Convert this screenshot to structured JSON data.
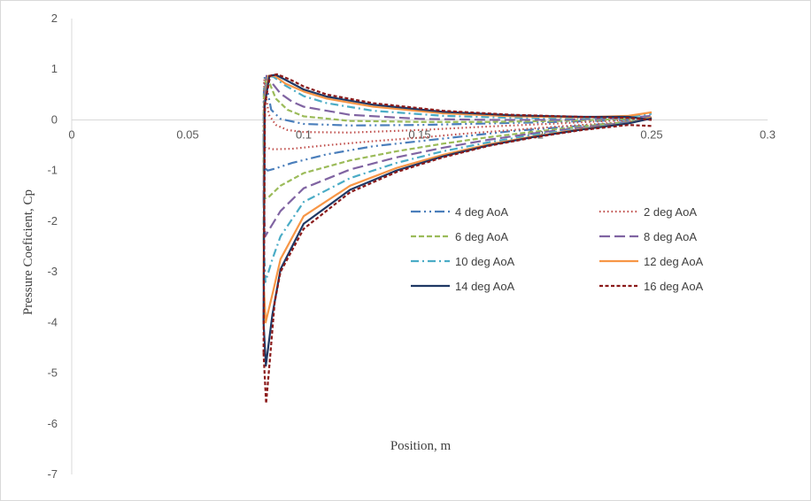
{
  "chart_data": {
    "type": "line",
    "title": "",
    "xlabel": "Position, m",
    "ylabel": "Pressure Coeficient, Cp",
    "xlim": [
      0,
      0.3
    ],
    "ylim": [
      -7,
      2
    ],
    "xticks": [
      0,
      0.05,
      0.1,
      0.15,
      0.2,
      0.25,
      0.3
    ],
    "xtick_labels": [
      "0",
      "0.05",
      "0.1",
      "0.15",
      "0.2",
      "0.25",
      "0.3"
    ],
    "yticks": [
      2,
      1,
      0,
      -1,
      -2,
      -3,
      -4,
      -5,
      -6,
      -7
    ],
    "ytick_labels": [
      "2",
      "1",
      "0",
      "-1",
      "-2",
      "-3",
      "-4",
      "-5",
      "-6",
      "-7"
    ],
    "grid": false,
    "legend_position": "center-right",
    "series": [
      {
        "name": "4 deg AoA",
        "color": "#4a7ebb",
        "dash": "long-dash-dot-dot",
        "upper": [
          [
            0.0827,
            -0.5
          ],
          [
            0.0832,
            -0.95
          ],
          [
            0.0845,
            -1.0
          ],
          [
            0.087,
            -0.97
          ],
          [
            0.095,
            -0.85
          ],
          [
            0.11,
            -0.68
          ],
          [
            0.13,
            -0.52
          ],
          [
            0.15,
            -0.42
          ],
          [
            0.17,
            -0.32
          ],
          [
            0.19,
            -0.22
          ],
          [
            0.21,
            -0.15
          ],
          [
            0.23,
            -0.08
          ],
          [
            0.245,
            -0.02
          ],
          [
            0.25,
            0.05
          ]
        ],
        "lower": [
          [
            0.0827,
            -0.5
          ],
          [
            0.0828,
            0.5
          ],
          [
            0.0832,
            0.85
          ],
          [
            0.0845,
            0.55
          ],
          [
            0.086,
            0.2
          ],
          [
            0.09,
            0.02
          ],
          [
            0.1,
            -0.08
          ],
          [
            0.12,
            -0.11
          ],
          [
            0.15,
            -0.1
          ],
          [
            0.18,
            -0.07
          ],
          [
            0.21,
            -0.04
          ],
          [
            0.24,
            0.0
          ],
          [
            0.25,
            0.03
          ]
        ]
      },
      {
        "name": "2 deg AoA",
        "color": "#c0504d",
        "dash": "dotted",
        "upper": [
          [
            0.0827,
            -0.3
          ],
          [
            0.0835,
            -0.55
          ],
          [
            0.087,
            -0.58
          ],
          [
            0.095,
            -0.57
          ],
          [
            0.11,
            -0.5
          ],
          [
            0.13,
            -0.42
          ],
          [
            0.15,
            -0.35
          ],
          [
            0.17,
            -0.27
          ],
          [
            0.19,
            -0.2
          ],
          [
            0.21,
            -0.13
          ],
          [
            0.23,
            -0.07
          ],
          [
            0.245,
            -0.02
          ],
          [
            0.25,
            0.05
          ]
        ],
        "lower": [
          [
            0.0827,
            -0.3
          ],
          [
            0.0828,
            0.4
          ],
          [
            0.083,
            0.8
          ],
          [
            0.0838,
            0.45
          ],
          [
            0.085,
            0.1
          ],
          [
            0.088,
            -0.1
          ],
          [
            0.093,
            -0.2
          ],
          [
            0.1,
            -0.24
          ],
          [
            0.12,
            -0.25
          ],
          [
            0.15,
            -0.2
          ],
          [
            0.18,
            -0.13
          ],
          [
            0.21,
            -0.07
          ],
          [
            0.24,
            0.0
          ],
          [
            0.25,
            0.03
          ]
        ]
      },
      {
        "name": "6 deg AoA",
        "color": "#9bbb59",
        "dash": "dashed",
        "upper": [
          [
            0.0827,
            -1.0
          ],
          [
            0.0833,
            -1.55
          ],
          [
            0.085,
            -1.52
          ],
          [
            0.09,
            -1.3
          ],
          [
            0.1,
            -1.05
          ],
          [
            0.12,
            -0.8
          ],
          [
            0.14,
            -0.62
          ],
          [
            0.16,
            -0.47
          ],
          [
            0.18,
            -0.34
          ],
          [
            0.2,
            -0.23
          ],
          [
            0.22,
            -0.13
          ],
          [
            0.24,
            -0.04
          ],
          [
            0.25,
            0.05
          ]
        ],
        "lower": [
          [
            0.0827,
            -1.0
          ],
          [
            0.0829,
            0.5
          ],
          [
            0.0838,
            0.87
          ],
          [
            0.0855,
            0.7
          ],
          [
            0.088,
            0.42
          ],
          [
            0.093,
            0.2
          ],
          [
            0.1,
            0.07
          ],
          [
            0.12,
            -0.02
          ],
          [
            0.15,
            -0.04
          ],
          [
            0.18,
            -0.04
          ],
          [
            0.21,
            -0.02
          ],
          [
            0.24,
            0.02
          ],
          [
            0.25,
            0.06
          ]
        ]
      },
      {
        "name": "8 deg AoA",
        "color": "#8064a2",
        "dash": "long-dash",
        "upper": [
          [
            0.0827,
            -1.6
          ],
          [
            0.0834,
            -2.3
          ],
          [
            0.086,
            -2.1
          ],
          [
            0.09,
            -1.8
          ],
          [
            0.1,
            -1.35
          ],
          [
            0.12,
            -0.98
          ],
          [
            0.14,
            -0.74
          ],
          [
            0.16,
            -0.55
          ],
          [
            0.18,
            -0.39
          ],
          [
            0.2,
            -0.26
          ],
          [
            0.22,
            -0.15
          ],
          [
            0.24,
            -0.05
          ],
          [
            0.25,
            0.05
          ]
        ],
        "lower": [
          [
            0.0827,
            -1.6
          ],
          [
            0.083,
            0.4
          ],
          [
            0.084,
            0.87
          ],
          [
            0.0865,
            0.72
          ],
          [
            0.09,
            0.52
          ],
          [
            0.095,
            0.36
          ],
          [
            0.1,
            0.26
          ],
          [
            0.12,
            0.1
          ],
          [
            0.15,
            0.02
          ],
          [
            0.18,
            0.0
          ],
          [
            0.21,
            0.0
          ],
          [
            0.24,
            0.04
          ],
          [
            0.25,
            0.08
          ]
        ]
      },
      {
        "name": "10 deg AoA",
        "color": "#4bacc6",
        "dash": "dash-dot",
        "upper": [
          [
            0.0827,
            -2.4
          ],
          [
            0.0835,
            -3.2
          ],
          [
            0.0865,
            -2.75
          ],
          [
            0.09,
            -2.3
          ],
          [
            0.1,
            -1.62
          ],
          [
            0.12,
            -1.15
          ],
          [
            0.14,
            -0.85
          ],
          [
            0.16,
            -0.62
          ],
          [
            0.18,
            -0.44
          ],
          [
            0.2,
            -0.29
          ],
          [
            0.22,
            -0.17
          ],
          [
            0.24,
            -0.06
          ],
          [
            0.25,
            0.05
          ]
        ],
        "lower": [
          [
            0.0827,
            -2.4
          ],
          [
            0.083,
            0.3
          ],
          [
            0.0845,
            0.87
          ],
          [
            0.087,
            0.85
          ],
          [
            0.092,
            0.68
          ],
          [
            0.1,
            0.47
          ],
          [
            0.11,
            0.33
          ],
          [
            0.13,
            0.18
          ],
          [
            0.16,
            0.08
          ],
          [
            0.19,
            0.04
          ],
          [
            0.22,
            0.03
          ],
          [
            0.24,
            0.06
          ],
          [
            0.25,
            0.12
          ]
        ]
      },
      {
        "name": "12 deg AoA",
        "color": "#f79646",
        "dash": "solid",
        "upper": [
          [
            0.0827,
            -3.2
          ],
          [
            0.0836,
            -4.0
          ],
          [
            0.087,
            -3.35
          ],
          [
            0.09,
            -2.75
          ],
          [
            0.1,
            -1.9
          ],
          [
            0.12,
            -1.3
          ],
          [
            0.14,
            -0.95
          ],
          [
            0.16,
            -0.69
          ],
          [
            0.18,
            -0.48
          ],
          [
            0.2,
            -0.32
          ],
          [
            0.22,
            -0.18
          ],
          [
            0.24,
            -0.07
          ],
          [
            0.25,
            0.05
          ]
        ],
        "lower": [
          [
            0.0827,
            -3.2
          ],
          [
            0.0831,
            0.3
          ],
          [
            0.0848,
            0.87
          ],
          [
            0.0875,
            0.87
          ],
          [
            0.092,
            0.72
          ],
          [
            0.1,
            0.56
          ],
          [
            0.11,
            0.42
          ],
          [
            0.13,
            0.26
          ],
          [
            0.16,
            0.13
          ],
          [
            0.19,
            0.07
          ],
          [
            0.22,
            0.05
          ],
          [
            0.24,
            0.08
          ],
          [
            0.25,
            0.15
          ]
        ]
      },
      {
        "name": "14 deg AoA",
        "color": "#1f3864",
        "dash": "solid",
        "upper": [
          [
            0.0827,
            -4.0
          ],
          [
            0.0837,
            -4.85
          ],
          [
            0.0865,
            -3.85
          ],
          [
            0.09,
            -2.95
          ],
          [
            0.1,
            -2.05
          ],
          [
            0.12,
            -1.38
          ],
          [
            0.14,
            -1.0
          ],
          [
            0.16,
            -0.72
          ],
          [
            0.18,
            -0.5
          ],
          [
            0.2,
            -0.33
          ],
          [
            0.22,
            -0.19
          ],
          [
            0.24,
            -0.07
          ],
          [
            0.25,
            0.03
          ]
        ],
        "lower": [
          [
            0.0827,
            -4.0
          ],
          [
            0.0832,
            0.3
          ],
          [
            0.0852,
            0.87
          ],
          [
            0.088,
            0.89
          ],
          [
            0.093,
            0.77
          ],
          [
            0.1,
            0.6
          ],
          [
            0.11,
            0.46
          ],
          [
            0.13,
            0.3
          ],
          [
            0.16,
            0.16
          ],
          [
            0.19,
            0.09
          ],
          [
            0.22,
            0.06
          ],
          [
            0.24,
            0.06
          ],
          [
            0.25,
            0.0
          ]
        ]
      },
      {
        "name": "16 deg AoA",
        "color": "#8b1a1a",
        "dash": "short-dash",
        "upper": [
          [
            0.0827,
            -4.6
          ],
          [
            0.0838,
            -5.6
          ],
          [
            0.0855,
            -4.7
          ],
          [
            0.0875,
            -3.6
          ],
          [
            0.09,
            -3.0
          ],
          [
            0.1,
            -2.15
          ],
          [
            0.12,
            -1.43
          ],
          [
            0.14,
            -1.03
          ],
          [
            0.16,
            -0.74
          ],
          [
            0.18,
            -0.51
          ],
          [
            0.2,
            -0.34
          ],
          [
            0.22,
            -0.2
          ],
          [
            0.24,
            -0.1
          ],
          [
            0.25,
            -0.12
          ]
        ],
        "lower": [
          [
            0.0827,
            -4.6
          ],
          [
            0.0833,
            0.3
          ],
          [
            0.0855,
            0.87
          ],
          [
            0.0885,
            0.9
          ],
          [
            0.094,
            0.8
          ],
          [
            0.1,
            0.66
          ],
          [
            0.11,
            0.5
          ],
          [
            0.13,
            0.33
          ],
          [
            0.16,
            0.18
          ],
          [
            0.19,
            0.1
          ],
          [
            0.22,
            0.06
          ],
          [
            0.24,
            0.04
          ],
          [
            0.25,
            0.0
          ]
        ]
      }
    ]
  }
}
